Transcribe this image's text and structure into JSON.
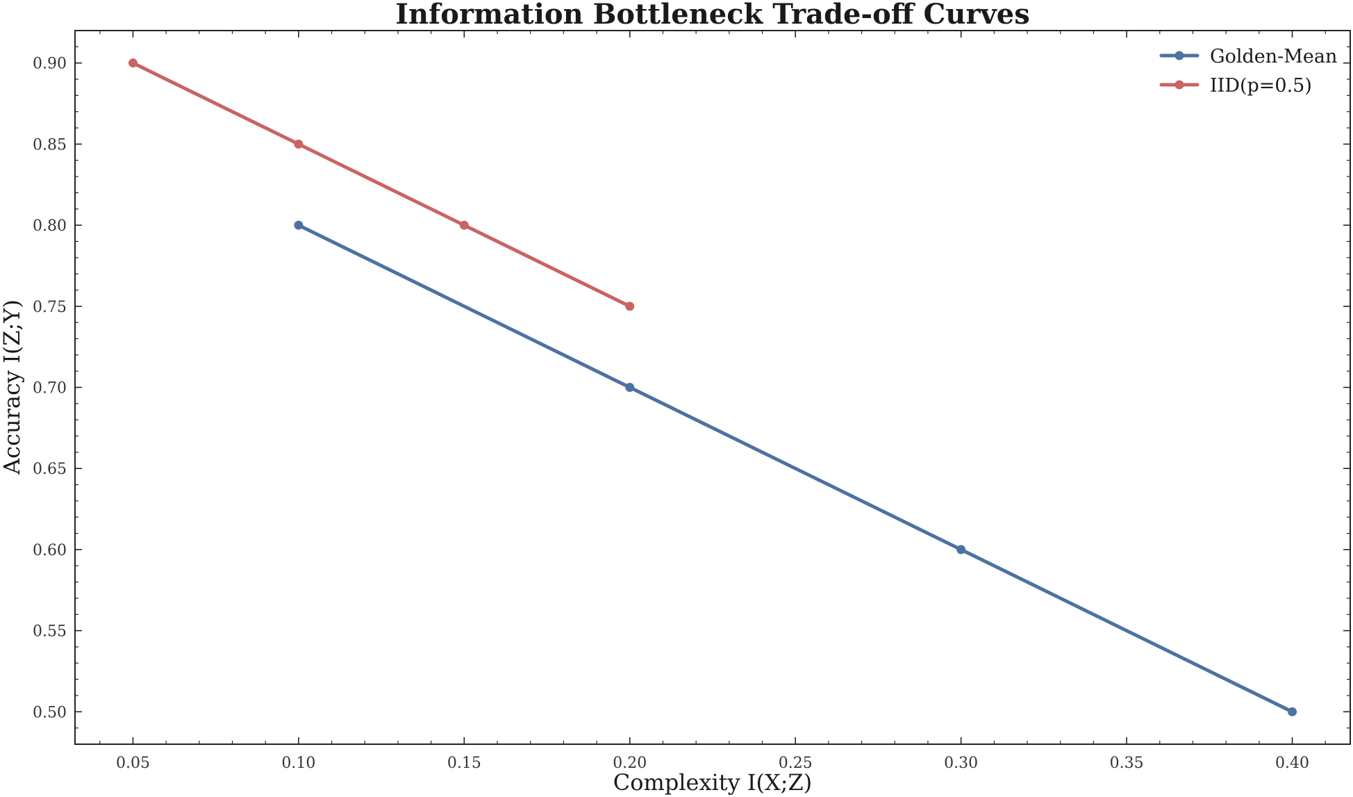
{
  "chart_data": {
    "type": "line",
    "title": "Information Bottleneck Trade-off Curves",
    "xlabel": "Complexity I(X;Z)",
    "ylabel": "Accuracy I(Z;Y)",
    "xlim": [
      0.0325,
      0.4175
    ],
    "ylim": [
      0.48,
      0.92
    ],
    "x_ticks": [
      0.05,
      0.1,
      0.15,
      0.2,
      0.25,
      0.3,
      0.35,
      0.4
    ],
    "x_tick_labels": [
      "0.05",
      "0.10",
      "0.15",
      "0.20",
      "0.25",
      "0.30",
      "0.35",
      "0.40"
    ],
    "y_ticks": [
      0.5,
      0.55,
      0.6,
      0.65,
      0.7,
      0.75,
      0.8,
      0.85,
      0.9
    ],
    "y_tick_labels": [
      "0.50",
      "0.55",
      "0.60",
      "0.65",
      "0.70",
      "0.75",
      "0.80",
      "0.85",
      "0.90"
    ],
    "grid": false,
    "legend_position": "top-right",
    "series": [
      {
        "name": "Golden-Mean",
        "color": "#4c72a0",
        "x": [
          0.1,
          0.2,
          0.3,
          0.4
        ],
        "y": [
          0.8,
          0.7,
          0.6,
          0.5
        ]
      },
      {
        "name": "IID(p=0.5)",
        "color": "#c96464",
        "x": [
          0.05,
          0.1,
          0.15,
          0.2
        ],
        "y": [
          0.9,
          0.85,
          0.8,
          0.75
        ]
      }
    ]
  }
}
